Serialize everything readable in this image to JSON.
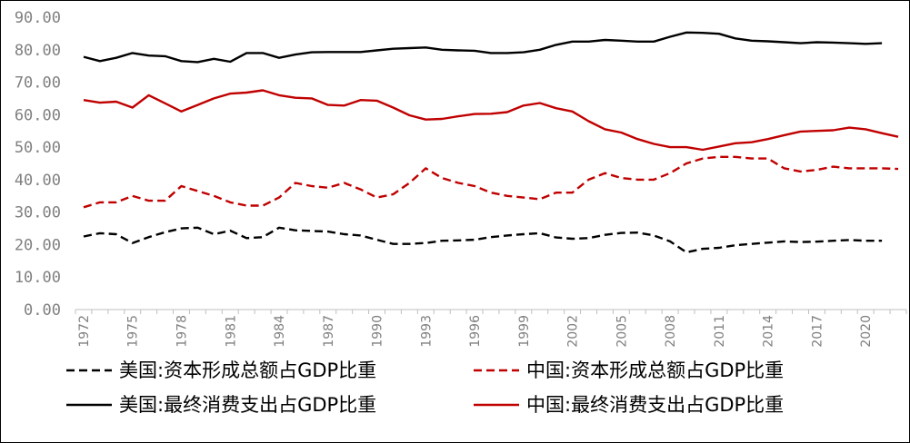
{
  "chart_data": {
    "type": "line",
    "title": "",
    "xlabel": "",
    "ylabel": "",
    "ylim": [
      0,
      90
    ],
    "y_ticks": [
      "0.00",
      "10.00",
      "20.00",
      "30.00",
      "40.00",
      "50.00",
      "60.00",
      "70.00",
      "80.00",
      "90.00"
    ],
    "x_ticks": [
      "1972",
      "1975",
      "1978",
      "1981",
      "1984",
      "1987",
      "1990",
      "1993",
      "1996",
      "1999",
      "2002",
      "2005",
      "2008",
      "2011",
      "2014",
      "2017",
      "2020"
    ],
    "grid": false,
    "legend_position": "bottom",
    "series": [
      {
        "name": "美国:资本形成总额占GDP比重",
        "color": "#000000",
        "dash": "dashed",
        "x": [
          1972,
          1973,
          1974,
          1975,
          1976,
          1977,
          1978,
          1979,
          1980,
          1981,
          1982,
          1983,
          1984,
          1985,
          1986,
          1987,
          1988,
          1989,
          1990,
          1991,
          1992,
          1993,
          1994,
          1995,
          1996,
          1997,
          1998,
          1999,
          2000,
          2001,
          2002,
          2003,
          2004,
          2005,
          2006,
          2007,
          2008,
          2009,
          2010,
          2011,
          2012,
          2013,
          2014,
          2015,
          2016,
          2017,
          2018,
          2019,
          2020,
          2021
        ],
        "values": [
          22.5,
          23.5,
          23.2,
          20.5,
          22.3,
          23.8,
          25.0,
          25.2,
          23.2,
          24.3,
          22.0,
          22.3,
          25.2,
          24.4,
          24.2,
          24.0,
          23.2,
          22.8,
          21.5,
          20.2,
          20.2,
          20.5,
          21.2,
          21.3,
          21.5,
          22.3,
          22.8,
          23.2,
          23.5,
          22.2,
          21.8,
          22.0,
          23.0,
          23.6,
          23.7,
          22.8,
          21.0,
          17.6,
          18.7,
          19.0,
          19.8,
          20.2,
          20.6,
          21.0,
          20.8,
          20.9,
          21.2,
          21.4,
          21.2,
          21.2
        ]
      },
      {
        "name": "中国:资本形成总额占GDP比重",
        "color": "#c00000",
        "dash": "dashed",
        "x": [
          1972,
          1973,
          1974,
          1975,
          1976,
          1977,
          1978,
          1979,
          1980,
          1981,
          1982,
          1983,
          1984,
          1985,
          1986,
          1987,
          1988,
          1989,
          1990,
          1991,
          1992,
          1993,
          1994,
          1995,
          1996,
          1997,
          1998,
          1999,
          2000,
          2001,
          2002,
          2003,
          2004,
          2005,
          2006,
          2007,
          2008,
          2009,
          2010,
          2011,
          2012,
          2013,
          2014,
          2015,
          2016,
          2017,
          2018,
          2019,
          2020,
          2021,
          2022
        ],
        "values": [
          31.5,
          33.0,
          33.0,
          35.0,
          33.5,
          33.5,
          38.0,
          36.5,
          35.0,
          33.0,
          32.0,
          32.0,
          34.5,
          39.0,
          38.0,
          37.5,
          39.0,
          37.0,
          34.5,
          35.5,
          39.0,
          43.5,
          40.5,
          39.0,
          38.0,
          36.0,
          35.0,
          34.5,
          34.0,
          36.0,
          36.0,
          40.0,
          42.0,
          40.5,
          40.0,
          40.0,
          42.0,
          45.0,
          46.5,
          47.0,
          47.0,
          46.5,
          46.5,
          43.5,
          42.5,
          43.0,
          44.0,
          43.5,
          43.5,
          43.5,
          43.3
        ]
      },
      {
        "name": "美国:最终消费支出占GDP比重",
        "color": "#000000",
        "dash": "solid",
        "x": [
          1972,
          1973,
          1974,
          1975,
          1976,
          1977,
          1978,
          1979,
          1980,
          1981,
          1982,
          1983,
          1984,
          1985,
          1986,
          1987,
          1988,
          1989,
          1990,
          1991,
          1992,
          1993,
          1994,
          1995,
          1996,
          1997,
          1998,
          1999,
          2000,
          2001,
          2002,
          2003,
          2004,
          2005,
          2006,
          2007,
          2008,
          2009,
          2010,
          2011,
          2012,
          2013,
          2014,
          2015,
          2016,
          2017,
          2018,
          2019,
          2020,
          2021
        ],
        "values": [
          77.8,
          76.5,
          77.5,
          79.0,
          78.2,
          78.0,
          76.5,
          76.2,
          77.2,
          76.3,
          79.0,
          79.0,
          77.5,
          78.5,
          79.2,
          79.3,
          79.3,
          79.3,
          79.8,
          80.3,
          80.5,
          80.7,
          80.0,
          79.8,
          79.7,
          79.0,
          79.0,
          79.2,
          80.0,
          81.5,
          82.5,
          82.5,
          83.0,
          82.8,
          82.5,
          82.5,
          84.0,
          85.3,
          85.2,
          84.9,
          83.5,
          82.8,
          82.6,
          82.3,
          82.0,
          82.3,
          82.2,
          82.0,
          81.8,
          82.0
        ]
      },
      {
        "name": "中国:最终消费支出占GDP比重",
        "color": "#c00000",
        "dash": "solid",
        "x": [
          1972,
          1973,
          1974,
          1975,
          1976,
          1977,
          1978,
          1979,
          1980,
          1981,
          1982,
          1983,
          1984,
          1985,
          1986,
          1987,
          1988,
          1989,
          1990,
          1991,
          1992,
          1993,
          1994,
          1995,
          1996,
          1997,
          1998,
          1999,
          2000,
          2001,
          2002,
          2003,
          2004,
          2005,
          2006,
          2007,
          2008,
          2009,
          2010,
          2011,
          2012,
          2013,
          2014,
          2015,
          2016,
          2017,
          2018,
          2019,
          2020,
          2021,
          2022
        ],
        "values": [
          64.5,
          63.7,
          64.0,
          62.2,
          66.0,
          63.5,
          61.0,
          63.0,
          65.0,
          66.5,
          66.8,
          67.5,
          66.0,
          65.2,
          65.0,
          63.0,
          62.8,
          64.5,
          64.3,
          62.2,
          59.8,
          58.5,
          58.7,
          59.5,
          60.2,
          60.3,
          60.8,
          62.8,
          63.6,
          62.0,
          61.0,
          58.0,
          55.5,
          54.5,
          52.5,
          51.0,
          50.0,
          50.0,
          49.2,
          50.2,
          51.2,
          51.5,
          52.5,
          53.7,
          54.8,
          55.0,
          55.2,
          56.0,
          55.5,
          54.3,
          53.2
        ]
      }
    ]
  }
}
